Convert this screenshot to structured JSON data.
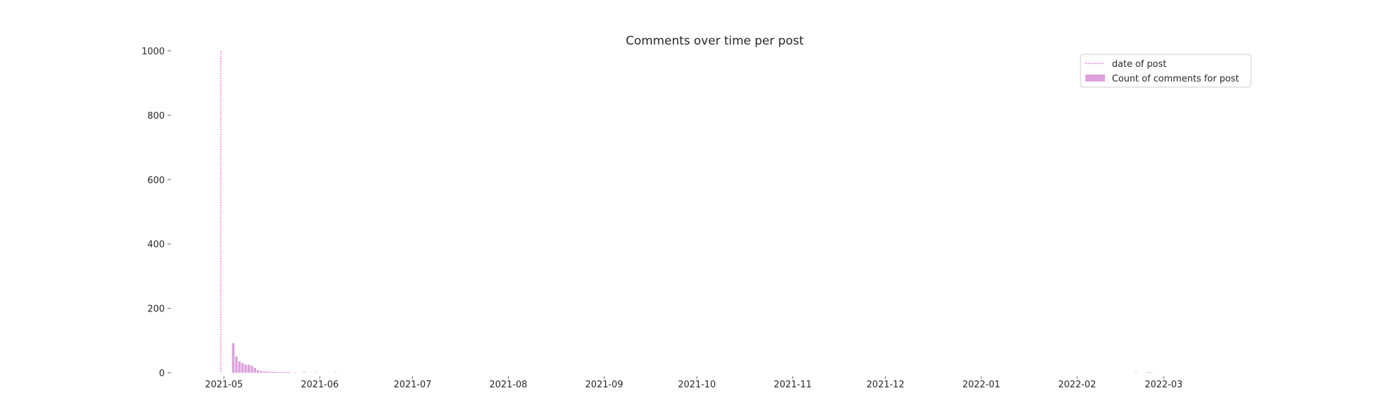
{
  "chart_data": {
    "type": "bar",
    "title": "Comments over time per post",
    "xlabel": "",
    "ylabel": "",
    "x_axis": {
      "type": "date",
      "range": [
        "2021-04-15",
        "2022-03-31"
      ],
      "tick_dates": [
        "2021-05-01",
        "2021-06-01",
        "2021-07-01",
        "2021-08-01",
        "2021-09-01",
        "2021-10-01",
        "2021-11-01",
        "2021-12-01",
        "2022-01-01",
        "2022-02-01",
        "2022-03-01"
      ],
      "tick_labels": [
        "2021-05",
        "2021-06",
        "2021-07",
        "2021-08",
        "2021-09",
        "2021-10",
        "2021-11",
        "2021-12",
        "2022-01",
        "2022-02",
        "2022-03"
      ]
    },
    "y_axis": {
      "range": [
        0,
        1000
      ],
      "ticks": [
        0,
        200,
        400,
        600,
        800,
        1000
      ],
      "tick_labels": [
        "0",
        "200",
        "400",
        "600",
        "800",
        "1000"
      ]
    },
    "grid": false,
    "legend": {
      "placement": "top-right",
      "entries": [
        "date of post",
        "Count of comments for post"
      ]
    },
    "series": [
      {
        "name": "date of post",
        "kind": "vline",
        "color": "#da70d6",
        "x": "2021-04-30",
        "y_range": [
          0,
          1000
        ]
      },
      {
        "name": "Count of comments for post",
        "kind": "bar",
        "color": "#dda0dd",
        "points": [
          {
            "date": "2021-05-04",
            "value": 92
          },
          {
            "date": "2021-05-05",
            "value": 50
          },
          {
            "date": "2021-05-06",
            "value": 35
          },
          {
            "date": "2021-05-07",
            "value": 30
          },
          {
            "date": "2021-05-08",
            "value": 25
          },
          {
            "date": "2021-05-09",
            "value": 25
          },
          {
            "date": "2021-05-10",
            "value": 22
          },
          {
            "date": "2021-05-11",
            "value": 15
          },
          {
            "date": "2021-05-12",
            "value": 8
          },
          {
            "date": "2021-05-13",
            "value": 5
          },
          {
            "date": "2021-05-14",
            "value": 4
          },
          {
            "date": "2021-05-15",
            "value": 4
          },
          {
            "date": "2021-05-16",
            "value": 3
          },
          {
            "date": "2021-05-17",
            "value": 3
          },
          {
            "date": "2021-05-18",
            "value": 2
          },
          {
            "date": "2021-05-19",
            "value": 2
          },
          {
            "date": "2021-05-20",
            "value": 2
          },
          {
            "date": "2021-05-21",
            "value": 2
          },
          {
            "date": "2021-05-22",
            "value": 2
          },
          {
            "date": "2021-05-24",
            "value": 1
          },
          {
            "date": "2021-05-27",
            "value": 2
          },
          {
            "date": "2021-05-31",
            "value": 1
          },
          {
            "date": "2021-06-06",
            "value": 1
          },
          {
            "date": "2022-02-20",
            "value": 1
          },
          {
            "date": "2022-02-24",
            "value": 2
          },
          {
            "date": "2022-02-25",
            "value": 1
          }
        ]
      }
    ]
  }
}
